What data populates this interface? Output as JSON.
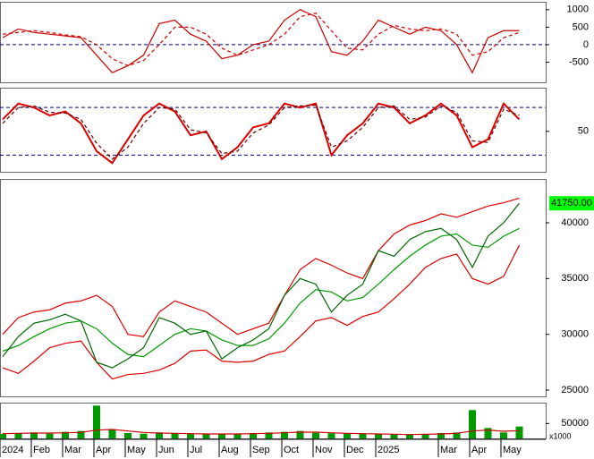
{
  "chart_data": [
    {
      "type": "line",
      "ylim": [
        -1075,
        1225
      ],
      "yticks": [
        1000,
        500,
        0,
        -500
      ],
      "reference_lines": [
        0
      ],
      "series": [
        {
          "color": "#cc0000",
          "dash": false,
          "values": [
            200,
            450,
            350,
            300,
            250,
            200,
            -300,
            -800,
            -600,
            -300,
            600,
            700,
            300,
            100,
            -400,
            -300,
            0,
            100,
            700,
            1000,
            800,
            -200,
            -300,
            100,
            700,
            500,
            300,
            500,
            400,
            0,
            -800,
            200,
            400,
            400
          ]
        },
        {
          "color": "#cc0000",
          "dash": true,
          "values": [
            300,
            350,
            400,
            350,
            280,
            230,
            0,
            -400,
            -600,
            -450,
            0,
            500,
            500,
            300,
            -100,
            -300,
            -150,
            0,
            300,
            800,
            900,
            400,
            -100,
            -150,
            300,
            550,
            450,
            400,
            450,
            300,
            -300,
            -200,
            200,
            350
          ]
        }
      ]
    },
    {
      "type": "line",
      "ylim": [
        -1,
        105
      ],
      "yticks": [
        50
      ],
      "reference_lines": [
        20,
        80
      ],
      "series": [
        {
          "color": "#dd0000",
          "dash": false,
          "values": [
            65,
            85,
            80,
            70,
            75,
            60,
            25,
            10,
            40,
            70,
            85,
            75,
            45,
            50,
            15,
            30,
            55,
            60,
            85,
            80,
            85,
            20,
            45,
            60,
            85,
            80,
            60,
            70,
            85,
            70,
            30,
            40,
            85,
            65
          ]
        },
        {
          "color": "#660000",
          "dash": true,
          "values": [
            60,
            80,
            82,
            74,
            73,
            65,
            35,
            15,
            30,
            60,
            80,
            78,
            52,
            48,
            22,
            25,
            48,
            58,
            80,
            82,
            83,
            30,
            38,
            55,
            80,
            82,
            65,
            68,
            82,
            74,
            38,
            36,
            78,
            70
          ]
        }
      ]
    },
    {
      "type": "line",
      "ylim": [
        24440,
        43930
      ],
      "yticks": [
        25000,
        30000,
        35000,
        40000
      ],
      "last_price": {
        "value": 41750,
        "label": "41750.00",
        "color": "#00ff00"
      },
      "series": [
        {
          "color": "#dd0000",
          "dash": false,
          "values": [
            30000,
            31500,
            32000,
            32200,
            32800,
            33000,
            33500,
            32500,
            30000,
            29800,
            32000,
            33000,
            32500,
            32000,
            31000,
            30000,
            30500,
            31000,
            33500,
            35800,
            36800,
            36200,
            35500,
            35000,
            37500,
            39000,
            39800,
            40200,
            40800,
            40500,
            41000,
            41500,
            41800,
            42200
          ]
        },
        {
          "color": "#009900",
          "dash": false,
          "values": [
            28500,
            29000,
            29800,
            30500,
            31000,
            31200,
            30500,
            29200,
            28200,
            28000,
            29000,
            30000,
            30500,
            30300,
            29500,
            29000,
            29000,
            29600,
            31000,
            32800,
            34000,
            33800,
            33000,
            33300,
            34500,
            35800,
            37000,
            38000,
            38800,
            39000,
            38000,
            37800,
            38800,
            39500
          ]
        },
        {
          "color": "#dd0000",
          "dash": false,
          "values": [
            27000,
            26500,
            27600,
            28800,
            29200,
            29400,
            27500,
            26000,
            26400,
            26500,
            26800,
            27400,
            28500,
            28600,
            27600,
            27500,
            27600,
            28200,
            28500,
            29800,
            31200,
            31500,
            30800,
            31600,
            32000,
            33200,
            34500,
            36000,
            36800,
            37200,
            35000,
            34500,
            35200,
            38000
          ]
        },
        {
          "color": "#006600",
          "dash": false,
          "values": [
            28000,
            29800,
            31000,
            31300,
            31800,
            31200,
            27500,
            27000,
            27800,
            28800,
            31500,
            31000,
            30000,
            30300,
            27800,
            28800,
            29500,
            30500,
            33500,
            35000,
            34500,
            32000,
            33500,
            34500,
            37500,
            37000,
            38500,
            39200,
            39500,
            38500,
            36000,
            38800,
            40000,
            41750
          ]
        }
      ]
    },
    {
      "type": "bar",
      "ylim": [
        0,
        120000
      ],
      "yticks": [
        50000
      ],
      "unit_label": "x1000",
      "categories": [
        "2024",
        null,
        "Feb",
        null,
        "Mar",
        null,
        "Apr",
        null,
        "May",
        null,
        "Jun",
        null,
        "Jul",
        null,
        "Aug",
        null,
        "Sep",
        null,
        "Oct",
        null,
        "Nov",
        null,
        "Dec",
        null,
        "2025",
        null,
        null,
        null,
        "Mar",
        null,
        "Apr",
        null,
        "May",
        null
      ],
      "series": [
        {
          "color": "#009900",
          "style": "bar",
          "values": [
            15000,
            18000,
            20000,
            16000,
            22000,
            25000,
            110000,
            30000,
            18000,
            16000,
            20000,
            17000,
            15000,
            14000,
            16000,
            15000,
            18000,
            20000,
            22000,
            25000,
            19000,
            17000,
            16000,
            15000,
            14000,
            13000,
            12000,
            15000,
            18000,
            20000,
            95000,
            35000,
            20000,
            40000
          ]
        },
        {
          "color": "#cc0000",
          "style": "line",
          "values": [
            16000,
            17000,
            18000,
            18000,
            19000,
            20000,
            28000,
            30000,
            25000,
            20000,
            18000,
            17000,
            16000,
            15000,
            15000,
            15000,
            16000,
            17000,
            19000,
            21000,
            21000,
            19000,
            17000,
            16000,
            15000,
            14000,
            13000,
            14000,
            15000,
            17000,
            25000,
            28000,
            24000,
            26000
          ]
        }
      ]
    }
  ]
}
